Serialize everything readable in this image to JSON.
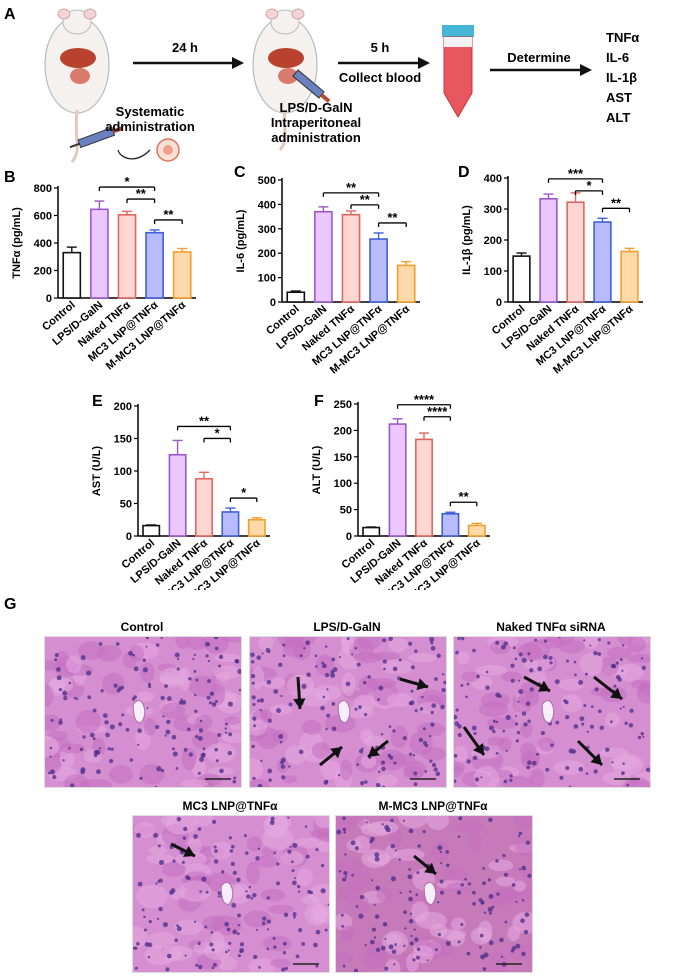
{
  "panel_a": {
    "label": "A",
    "step1_time": "24 h",
    "step1_caption": [
      "Systematic",
      "administration"
    ],
    "step2_treatment": [
      "LPS/D-GalN",
      "Intraperitoneal",
      "administration"
    ],
    "step2_time": "5 h",
    "step2_action": "Collect blood",
    "step3_action": "Determine",
    "markers": [
      "TNFα",
      "IL-6",
      "IL-1β",
      "AST",
      "ALT"
    ]
  },
  "groups": [
    "Control",
    "LPS/D-GalN",
    "Naked TNFα",
    "MC3 LNP@TNFα",
    "M-MC3 LNP@TNFα"
  ],
  "group_colors": [
    "#111111",
    "#9b59c8",
    "#e0675f",
    "#3f5fd8",
    "#f0a030"
  ],
  "group_fills": [
    "#ffffff",
    "#ecc6ff",
    "#ffd6d2",
    "#b8bcff",
    "#ffd9a8"
  ],
  "chart_data": [
    {
      "panel": "B",
      "type": "bar",
      "ylabel": "TNFα (pg/mL)",
      "ylim": [
        0,
        800
      ],
      "ticks": [
        0,
        200,
        400,
        600,
        800
      ],
      "values": [
        330,
        645,
        605,
        475,
        335
      ],
      "errors": [
        40,
        60,
        25,
        20,
        25
      ],
      "sig": [
        {
          "from": 1,
          "to": 3,
          "label": "*"
        },
        {
          "from": 2,
          "to": 3,
          "label": "**"
        },
        {
          "from": 3,
          "to": 4,
          "label": "**"
        }
      ]
    },
    {
      "panel": "C",
      "type": "bar",
      "ylabel": "IL-6 (pg/mL)",
      "ylim": [
        0,
        500
      ],
      "ticks": [
        0,
        100,
        200,
        300,
        400,
        500
      ],
      "values": [
        40,
        370,
        358,
        258,
        150
      ],
      "errors": [
        5,
        20,
        15,
        25,
        15
      ],
      "sig": [
        {
          "from": 1,
          "to": 3,
          "label": "**"
        },
        {
          "from": 2,
          "to": 3,
          "label": "**"
        },
        {
          "from": 3,
          "to": 4,
          "label": "**"
        }
      ]
    },
    {
      "panel": "D",
      "type": "bar",
      "ylabel": "IL-1β (pg/mL)",
      "ylim": [
        0,
        400
      ],
      "ticks": [
        0,
        100,
        200,
        300,
        400
      ],
      "values": [
        148,
        333,
        322,
        258,
        163
      ],
      "errors": [
        10,
        15,
        30,
        12,
        10
      ],
      "sig": [
        {
          "from": 1,
          "to": 3,
          "label": "***"
        },
        {
          "from": 2,
          "to": 3,
          "label": "*"
        },
        {
          "from": 3,
          "to": 4,
          "label": "**"
        }
      ]
    },
    {
      "panel": "E",
      "type": "bar",
      "ylabel": "AST (U/L)",
      "ylim": [
        0,
        200
      ],
      "ticks": [
        0,
        50,
        100,
        150,
        200
      ],
      "values": [
        16,
        125,
        88,
        37,
        25
      ],
      "errors": [
        1,
        22,
        10,
        6,
        3
      ],
      "sig": [
        {
          "from": 1,
          "to": 3,
          "label": "**"
        },
        {
          "from": 2,
          "to": 3,
          "label": "*"
        },
        {
          "from": 3,
          "to": 4,
          "label": "*"
        }
      ]
    },
    {
      "panel": "F",
      "type": "bar",
      "ylabel": "ALT (U/L)",
      "ylim": [
        0,
        250
      ],
      "ticks": [
        0,
        50,
        100,
        150,
        200,
        250
      ],
      "values": [
        16,
        212,
        183,
        42,
        20
      ],
      "errors": [
        1,
        10,
        12,
        3,
        4
      ],
      "sig": [
        {
          "from": 1,
          "to": 3,
          "label": "****"
        },
        {
          "from": 2,
          "to": 3,
          "label": "****"
        },
        {
          "from": 3,
          "to": 4,
          "label": "**"
        }
      ]
    }
  ],
  "panel_g": {
    "label": "G",
    "images": [
      {
        "title": "Control",
        "arrows": 0
      },
      {
        "title": "LPS/D-GalN",
        "arrows": 4
      },
      {
        "title": "Naked TNFα siRNA",
        "arrows": 4
      },
      {
        "title": "MC3 LNP@TNFα",
        "arrows": 1
      },
      {
        "title": "M-MC3 LNP@TNFα",
        "arrows": 1
      }
    ]
  }
}
